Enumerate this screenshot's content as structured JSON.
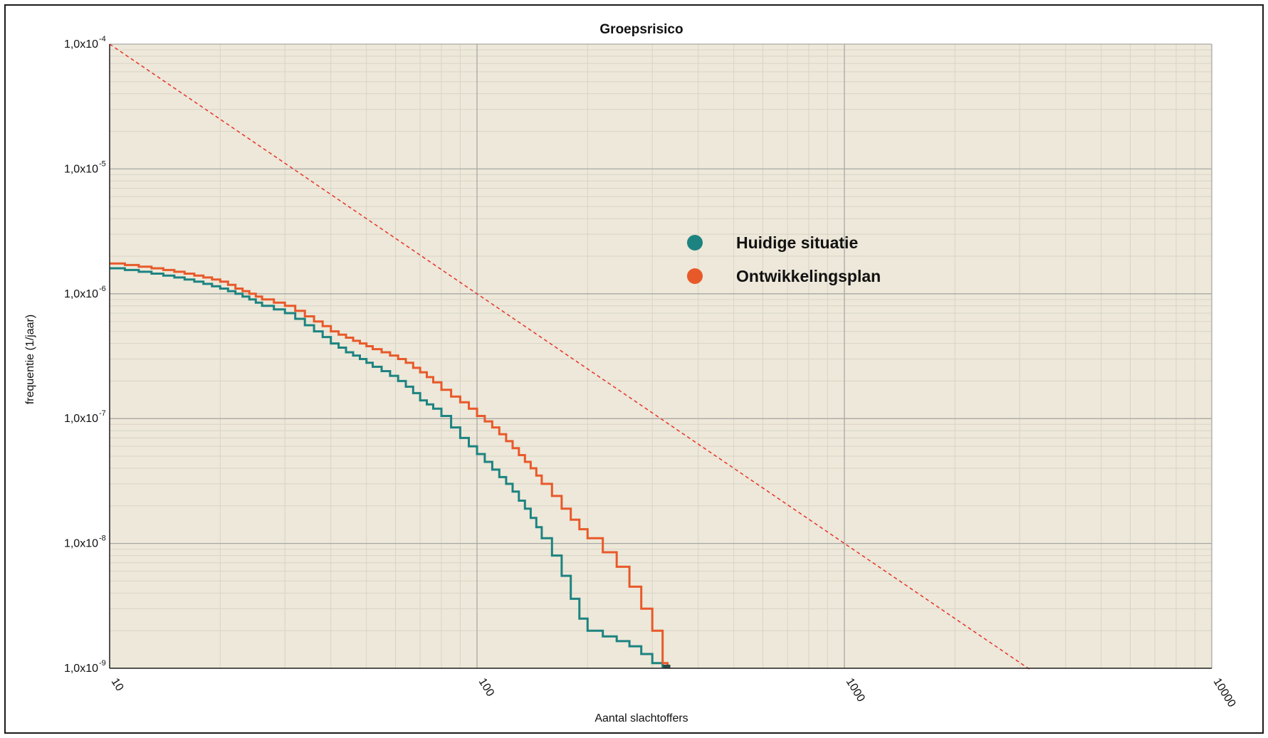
{
  "chart_data": {
    "type": "line",
    "title": "Groepsrisico",
    "xlabel": "Aantal slachtoffers",
    "ylabel": "frequentie (1/jaar)",
    "xscale": "log",
    "yscale": "log",
    "xlim": [
      10,
      10000
    ],
    "ylim": [
      1e-09,
      0.0001
    ],
    "grid": true,
    "legend_position": "center",
    "x_tick_labels": [
      "10",
      "100",
      "1000",
      "10000"
    ],
    "y_tick_labels": [
      {
        "mantissa": "1,0x10",
        "exp": "-4"
      },
      {
        "mantissa": "1,0x10",
        "exp": "-5"
      },
      {
        "mantissa": "1,0x10",
        "exp": "-6"
      },
      {
        "mantissa": "1,0x10",
        "exp": "-7"
      },
      {
        "mantissa": "1,0x10",
        "exp": "-8"
      },
      {
        "mantissa": "1,0x10",
        "exp": "-9"
      }
    ],
    "colors": {
      "plot_background": "#ede8d9",
      "grid_major": "#a8a8a4",
      "grid_minor": "#d8d4c6",
      "norm_line": "#e8322a"
    },
    "series": [
      {
        "name": "Huidige situatie",
        "color": "#1d8381",
        "step": true,
        "x": [
          10,
          11,
          12,
          13,
          14,
          15,
          16,
          17,
          18,
          19,
          20,
          21,
          22,
          23,
          24,
          25,
          26,
          28,
          30,
          32,
          34,
          36,
          38,
          40,
          42,
          44,
          46,
          48,
          50,
          52,
          55,
          58,
          61,
          64,
          67,
          70,
          73,
          76,
          80,
          85,
          90,
          95,
          100,
          105,
          110,
          115,
          120,
          125,
          130,
          135,
          140,
          145,
          150,
          160,
          170,
          180,
          190,
          200,
          220,
          240,
          260,
          280,
          300,
          320,
          330
        ],
        "y": [
          1.6e-06,
          1.55e-06,
          1.5e-06,
          1.45e-06,
          1.4e-06,
          1.35e-06,
          1.3e-06,
          1.25e-06,
          1.2e-06,
          1.15e-06,
          1.1e-06,
          1.05e-06,
          1e-06,
          9.5e-07,
          9e-07,
          8.5e-07,
          8e-07,
          7.5e-07,
          7e-07,
          6.3e-07,
          5.6e-07,
          5e-07,
          4.5e-07,
          4e-07,
          3.7e-07,
          3.4e-07,
          3.2e-07,
          3e-07,
          2.8e-07,
          2.6e-07,
          2.4e-07,
          2.2e-07,
          2e-07,
          1.8e-07,
          1.6e-07,
          1.4e-07,
          1.3e-07,
          1.2e-07,
          1.05e-07,
          8.5e-08,
          7e-08,
          6e-08,
          5.2e-08,
          4.5e-08,
          3.9e-08,
          3.4e-08,
          3e-08,
          2.6e-08,
          2.2e-08,
          1.9e-08,
          1.6e-08,
          1.35e-08,
          1.1e-08,
          8e-09,
          5.5e-09,
          3.6e-09,
          2.5e-09,
          2e-09,
          1.8e-09,
          1.65e-09,
          1.5e-09,
          1.3e-09,
          1.1e-09,
          1.03e-09,
          1e-09
        ]
      },
      {
        "name": "Ontwikkelingsplan",
        "color": "#e8592a",
        "step": true,
        "x": [
          10,
          11,
          12,
          13,
          14,
          15,
          16,
          17,
          18,
          19,
          20,
          21,
          22,
          23,
          24,
          25,
          26,
          28,
          30,
          32,
          34,
          36,
          38,
          40,
          42,
          44,
          46,
          48,
          50,
          52,
          55,
          58,
          61,
          64,
          67,
          70,
          73,
          76,
          80,
          85,
          90,
          95,
          100,
          105,
          110,
          115,
          120,
          125,
          130,
          135,
          140,
          145,
          150,
          160,
          170,
          180,
          190,
          200,
          220,
          240,
          260,
          280,
          300,
          320,
          330
        ],
        "y": [
          1.75e-06,
          1.7e-06,
          1.65e-06,
          1.6e-06,
          1.55e-06,
          1.5e-06,
          1.45e-06,
          1.4e-06,
          1.35e-06,
          1.3e-06,
          1.25e-06,
          1.18e-06,
          1.1e-06,
          1.05e-06,
          1e-06,
          9.5e-07,
          9e-07,
          8.5e-07,
          8e-07,
          7.3e-07,
          6.6e-07,
          6e-07,
          5.5e-07,
          5e-07,
          4.7e-07,
          4.45e-07,
          4.2e-07,
          4e-07,
          3.8e-07,
          3.6e-07,
          3.4e-07,
          3.2e-07,
          3e-07,
          2.8e-07,
          2.55e-07,
          2.35e-07,
          2.15e-07,
          1.95e-07,
          1.7e-07,
          1.5e-07,
          1.35e-07,
          1.2e-07,
          1.05e-07,
          9.5e-08,
          8.5e-08,
          7.5e-08,
          6.6e-08,
          5.8e-08,
          5.1e-08,
          4.5e-08,
          4e-08,
          3.5e-08,
          3e-08,
          2.4e-08,
          1.9e-08,
          1.55e-08,
          1.3e-08,
          1.1e-08,
          8.5e-09,
          6.5e-09,
          4.5e-09,
          3e-09,
          2e-09,
          1.1e-09,
          1e-09
        ]
      }
    ],
    "norm_line": {
      "style": "dashed",
      "x": [
        10,
        3200
      ],
      "y": [
        0.0001,
        9.77e-10
      ]
    }
  }
}
